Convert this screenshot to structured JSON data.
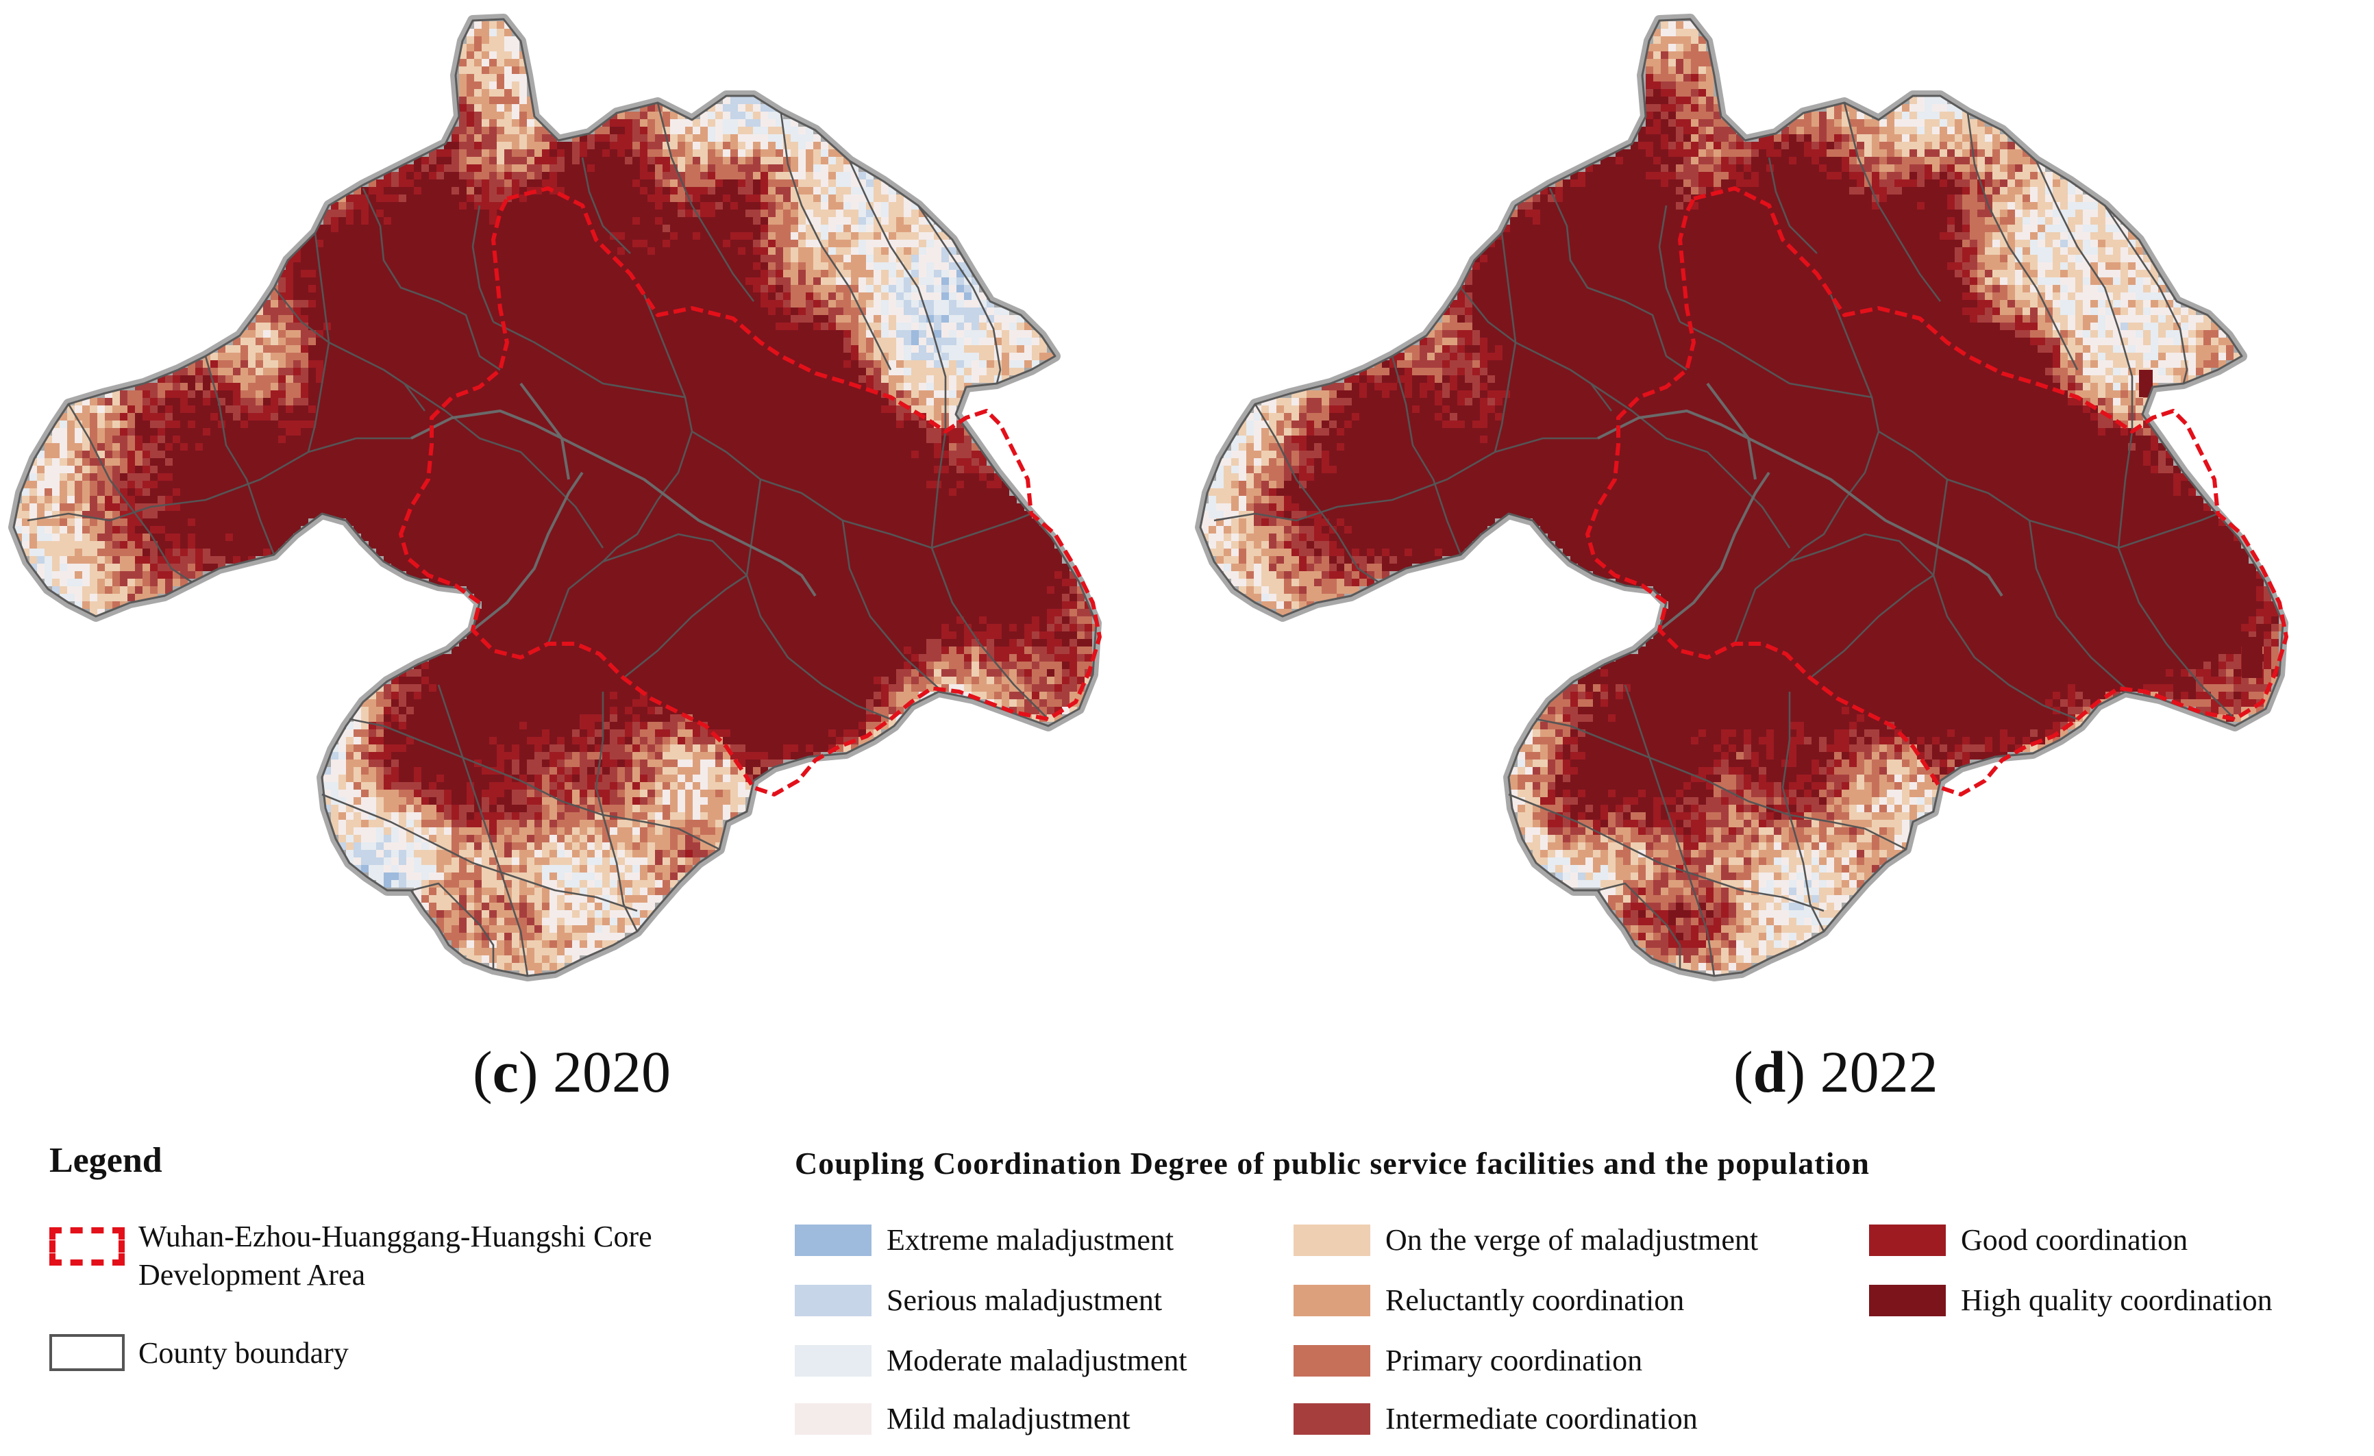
{
  "panels": [
    {
      "id": "c",
      "letter": "c",
      "year": "2020"
    },
    {
      "id": "d",
      "letter": "d",
      "year": "2022"
    }
  ],
  "legend": {
    "heading": "Legend",
    "core_area_label": "Wuhan-Ezhou-Huanggang-Huangshi Core Development Area",
    "county_boundary_label": "County boundary"
  },
  "coupling_legend": {
    "title": "Coupling Coordination Degree of public service facilities and the population",
    "classes": [
      {
        "label": "Extreme maladjustment",
        "color": "#9ebadd"
      },
      {
        "label": "Serious maladjustment",
        "color": "#c6d5e8"
      },
      {
        "label": "Moderate maladjustment",
        "color": "#e6ecf1"
      },
      {
        "label": "Mild maladjustment",
        "color": "#f4eceb"
      },
      {
        "label": "On the verge of maladjustment",
        "color": "#eecfb2"
      },
      {
        "label": "Reluctantly coordination",
        "color": "#dda07d"
      },
      {
        "label": "Primary coordination",
        "color": "#c6705a"
      },
      {
        "label": "Intermediate coordination",
        "color": "#a73e3e"
      },
      {
        "label": "Good coordination",
        "color": "#9e1b22"
      },
      {
        "label": "High quality coordination",
        "color": "#7c141c"
      }
    ]
  },
  "colors": {
    "core_boundary": "#e3101a",
    "county_boundary": "#555555",
    "outer_halo": "#a8a8a8"
  }
}
